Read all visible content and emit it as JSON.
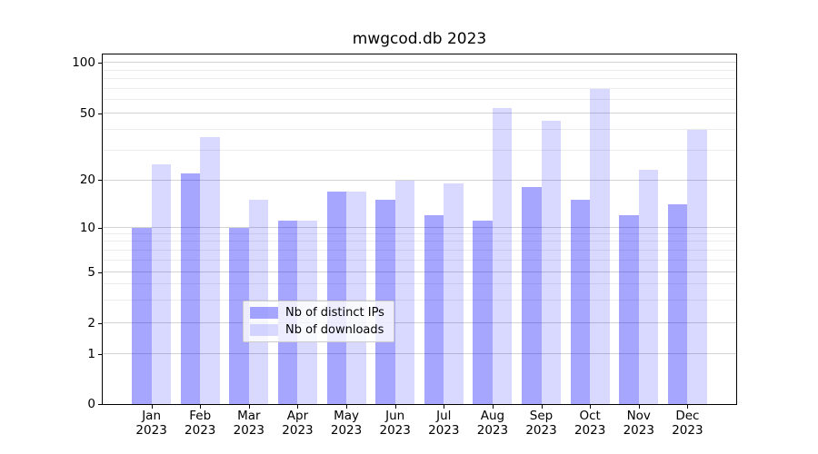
{
  "figure_title": "mwgcod.db 2023",
  "chart_data": {
    "type": "bar",
    "title": "mwgcod.db 2023",
    "categories": [
      "Jan 2023",
      "Feb 2023",
      "Mar 2023",
      "Apr 2023",
      "May 2023",
      "Jun 2023",
      "Jul 2023",
      "Aug 2023",
      "Sep 2023",
      "Oct 2023",
      "Nov 2023",
      "Dec 2023"
    ],
    "series": [
      {
        "name": "Nb of distinct IPs",
        "color": "rgba(0,0,255,0.35)",
        "values": [
          10,
          22,
          10,
          11,
          17,
          15,
          12,
          11,
          18,
          15,
          12,
          14
        ]
      },
      {
        "name": "Nb of downloads",
        "color": "rgba(0,0,255,0.15)",
        "values": [
          25,
          36,
          15,
          11,
          17,
          20,
          19,
          54,
          45,
          70,
          23,
          40
        ]
      }
    ],
    "xlabel": "",
    "ylabel": "",
    "yscale": "symlog",
    "yticks": [
      0,
      1,
      2,
      5,
      10,
      20,
      50,
      100
    ],
    "yminorticks": [
      3,
      4,
      6,
      7,
      8,
      9,
      30,
      40,
      60,
      70,
      80,
      90
    ],
    "ylim": [
      0,
      112
    ],
    "grid": "horizontal major+minor",
    "legend_position": "lower center",
    "bar_width_fraction": 0.4
  }
}
